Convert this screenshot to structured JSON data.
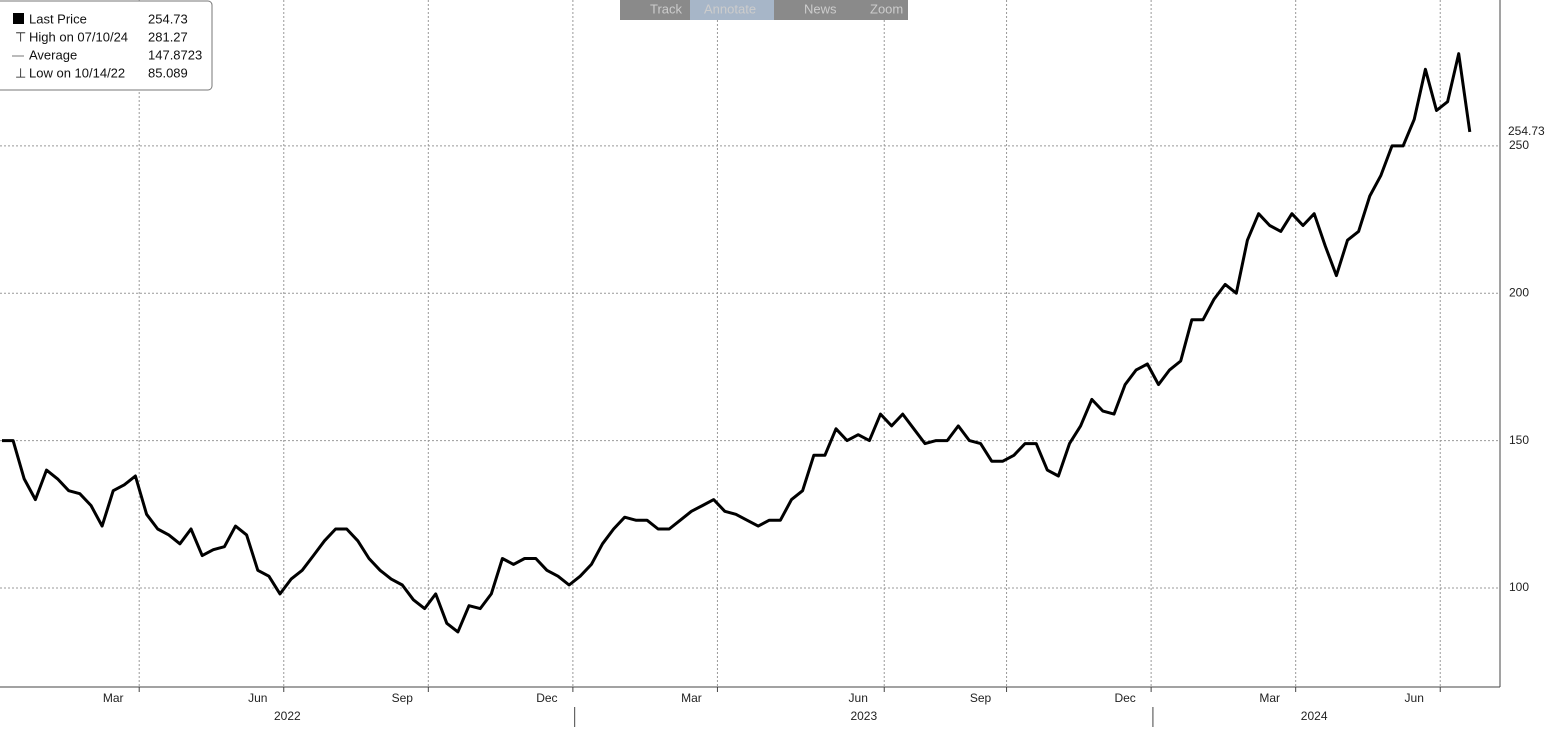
{
  "toolbar": [
    "Track",
    "Annotate",
    "News",
    "Zoom"
  ],
  "chart_data": {
    "type": "line",
    "color": "#000000",
    "grid": true,
    "legend": [
      {
        "label": "Last Price",
        "value": 254.73
      },
      {
        "label": "High on 07/10/24",
        "value": 281.27
      },
      {
        "label": "Average",
        "value": 147.8723
      },
      {
        "label": "Low on 10/14/22",
        "value": 85.089
      }
    ],
    "categories": [
      null,
      null,
      null,
      null,
      null,
      null,
      null,
      null,
      null,
      null,
      "Mar",
      null,
      null,
      null,
      null,
      null,
      null,
      null,
      null,
      null,
      null,
      null,
      null,
      "Jun",
      null,
      null,
      null,
      null,
      null,
      null,
      null,
      null,
      null,
      null,
      null,
      null,
      "Sep",
      null,
      null,
      null,
      null,
      null,
      null,
      null,
      null,
      null,
      null,
      null,
      null,
      "Dec",
      null,
      null,
      null,
      null,
      null,
      null,
      null,
      null,
      null,
      null,
      null,
      null,
      "Mar",
      null,
      null,
      null,
      null,
      null,
      null,
      null,
      null,
      null,
      null,
      null,
      null,
      null,
      null,
      "Jun",
      null,
      null,
      null,
      null,
      null,
      null,
      null,
      null,
      null,
      null,
      "Sep",
      null,
      null,
      null,
      null,
      null,
      null,
      null,
      null,
      null,
      null,
      null,
      null,
      "Dec",
      null,
      null,
      null,
      null,
      null,
      null,
      null,
      null,
      null,
      null,
      null,
      null,
      "Mar",
      null,
      null,
      null,
      null,
      null,
      null,
      null,
      null,
      null,
      null,
      null,
      null,
      "Jun",
      null,
      null,
      null,
      null,
      null
    ],
    "groups": [
      {
        "label": "2022",
        "count": 52
      },
      {
        "label": "2023",
        "count": 52
      },
      {
        "label": "2024",
        "count": 29
      }
    ],
    "values": [
      150,
      150,
      137,
      130,
      140,
      137,
      133,
      132,
      128,
      121,
      133,
      135,
      138,
      125,
      120,
      118,
      115,
      120,
      111,
      113,
      114,
      121,
      118,
      106,
      104,
      98,
      103,
      106,
      111,
      116,
      120,
      120,
      116,
      110,
      106,
      103,
      101,
      96,
      93,
      98,
      88,
      85.089,
      94,
      93,
      98,
      110,
      108,
      110,
      110,
      106,
      104,
      101,
      104,
      108,
      115,
      120,
      124,
      123,
      123,
      120,
      120,
      123,
      126,
      128,
      130,
      126,
      125,
      123,
      121,
      123,
      123,
      130,
      133,
      145,
      145,
      154,
      150,
      152,
      150,
      159,
      155,
      159,
      154,
      149,
      150,
      150,
      155,
      150,
      149,
      143,
      143,
      145,
      149,
      149,
      140,
      138,
      149,
      155,
      164,
      160,
      159,
      169,
      174,
      176,
      169,
      174,
      177,
      191,
      191,
      198,
      203,
      200,
      218,
      227,
      223,
      221,
      227,
      223,
      227,
      216,
      206,
      218,
      221,
      233,
      240,
      250,
      250,
      259,
      276,
      262,
      265,
      281.27,
      254.73
    ],
    "ylim": [
      66.4,
      299.5
    ],
    "yticks": [
      100,
      150,
      200,
      250
    ]
  }
}
